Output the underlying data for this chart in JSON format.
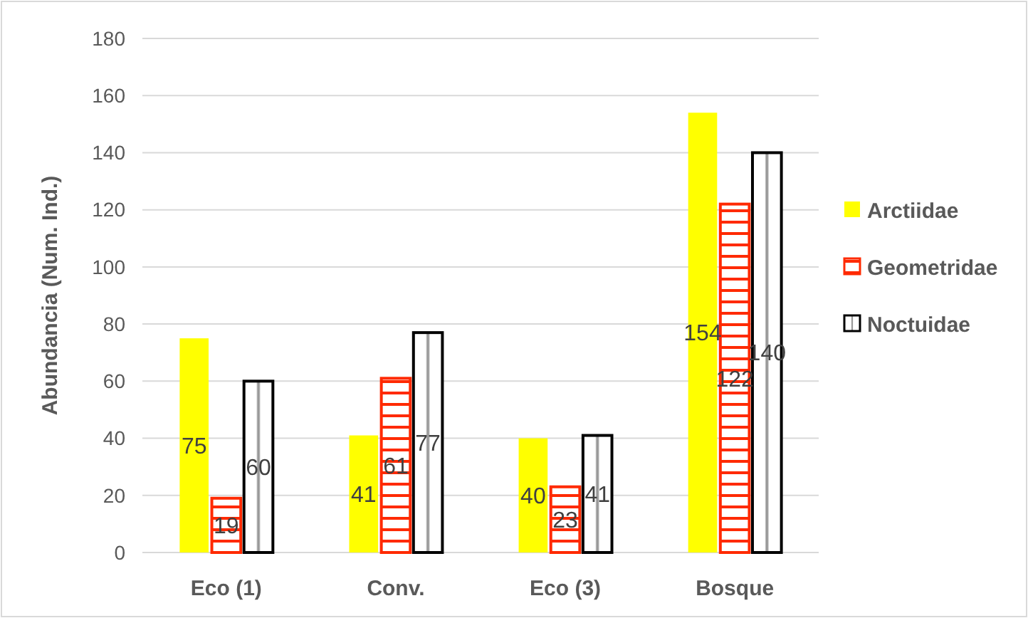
{
  "chart_data": {
    "type": "bar",
    "ylabel": "Abundancia (Num. Ind.)",
    "categories": [
      "Eco (1)",
      "Conv.",
      "Eco (3)",
      "Bosque"
    ],
    "series": [
      {
        "name": "Arctiidae",
        "color": "#ffff00",
        "values": [
          75,
          41,
          40,
          154
        ]
      },
      {
        "name": "Geometridae",
        "color": "#ff2a00",
        "values": [
          19,
          61,
          23,
          122
        ]
      },
      {
        "name": "Noctuidae",
        "color": "#000000",
        "values": [
          60,
          77,
          41,
          140
        ]
      }
    ],
    "ylim": [
      0,
      180
    ],
    "yticks": [
      0,
      20,
      40,
      60,
      80,
      100,
      120,
      140,
      160,
      180
    ],
    "grid": "y",
    "legend": "right",
    "data_labels": true
  }
}
